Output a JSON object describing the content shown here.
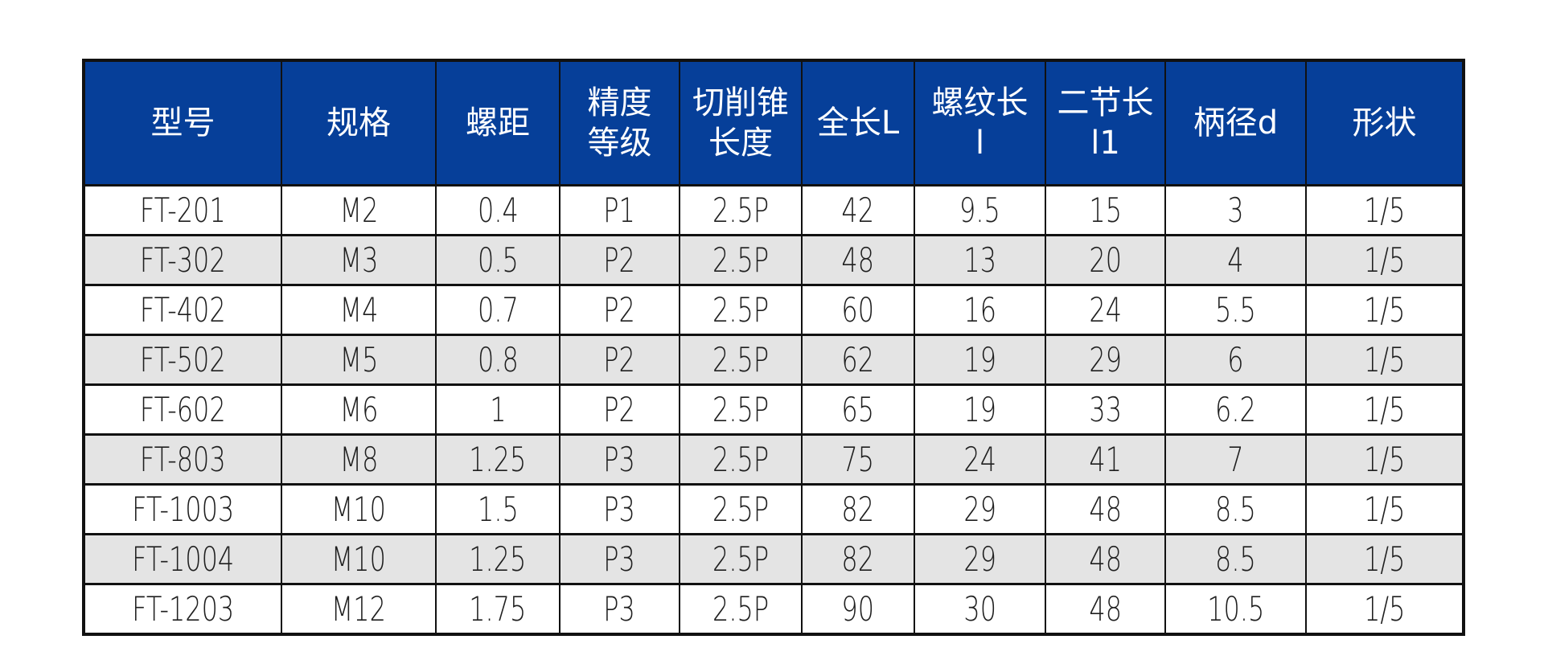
{
  "page": {
    "background": "#ffffff"
  },
  "colors": {
    "header_bg": "#063F99",
    "header_text": "#ffffff",
    "stripe_bg": "#E4E4E4",
    "border": "#111111",
    "body_text": "#1f1f1f"
  },
  "table": {
    "columns": [
      {
        "key": "model",
        "label": "型号",
        "label_lines": [
          "型号"
        ]
      },
      {
        "key": "spec",
        "label": "规格",
        "label_lines": [
          "规格"
        ]
      },
      {
        "key": "pitch",
        "label": "螺距",
        "label_lines": [
          "螺距"
        ]
      },
      {
        "key": "precision",
        "label": "精度等级",
        "label_lines": [
          "精度",
          "等级"
        ]
      },
      {
        "key": "taper",
        "label": "切削锥长度",
        "label_lines": [
          "切削锥",
          "长度"
        ]
      },
      {
        "key": "length",
        "label": "全长L",
        "label_lines": [
          "全长L"
        ]
      },
      {
        "key": "thread",
        "label": "螺纹长l",
        "label_lines": [
          "螺纹长",
          "l"
        ]
      },
      {
        "key": "second",
        "label": "二节长l1",
        "label_lines": [
          "二节长",
          "l1"
        ]
      },
      {
        "key": "shank",
        "label": "柄径d",
        "label_lines": [
          "柄径d"
        ]
      },
      {
        "key": "shape",
        "label": "形状",
        "label_lines": [
          "形状"
        ]
      }
    ],
    "rows": [
      [
        "FT-201",
        "M2",
        "0.4",
        "P1",
        "2.5P",
        "42",
        "9.5",
        "15",
        "3",
        "1/5"
      ],
      [
        "FT-302",
        "M3",
        "0.5",
        "P2",
        "2.5P",
        "48",
        "13",
        "20",
        "4",
        "1/5"
      ],
      [
        "FT-402",
        "M4",
        "0.7",
        "P2",
        "2.5P",
        "60",
        "16",
        "24",
        "5.5",
        "1/5"
      ],
      [
        "FT-502",
        "M5",
        "0.8",
        "P2",
        "2.5P",
        "62",
        "19",
        "29",
        "6",
        "1/5"
      ],
      [
        "FT-602",
        "M6",
        "1",
        "P2",
        "2.5P",
        "65",
        "19",
        "33",
        "6.2",
        "1/5"
      ],
      [
        "FT-803",
        "M8",
        "1.25",
        "P3",
        "2.5P",
        "75",
        "24",
        "41",
        "7",
        "1/5"
      ],
      [
        "FT-1003",
        "M10",
        "1.5",
        "P3",
        "2.5P",
        "82",
        "29",
        "48",
        "8.5",
        "1/5"
      ],
      [
        "FT-1004",
        "M10",
        "1.25",
        "P3",
        "2.5P",
        "82",
        "29",
        "48",
        "8.5",
        "1/5"
      ],
      [
        "FT-1203",
        "M12",
        "1.75",
        "P3",
        "2.5P",
        "90",
        "30",
        "48",
        "10.5",
        "1/5"
      ]
    ]
  }
}
